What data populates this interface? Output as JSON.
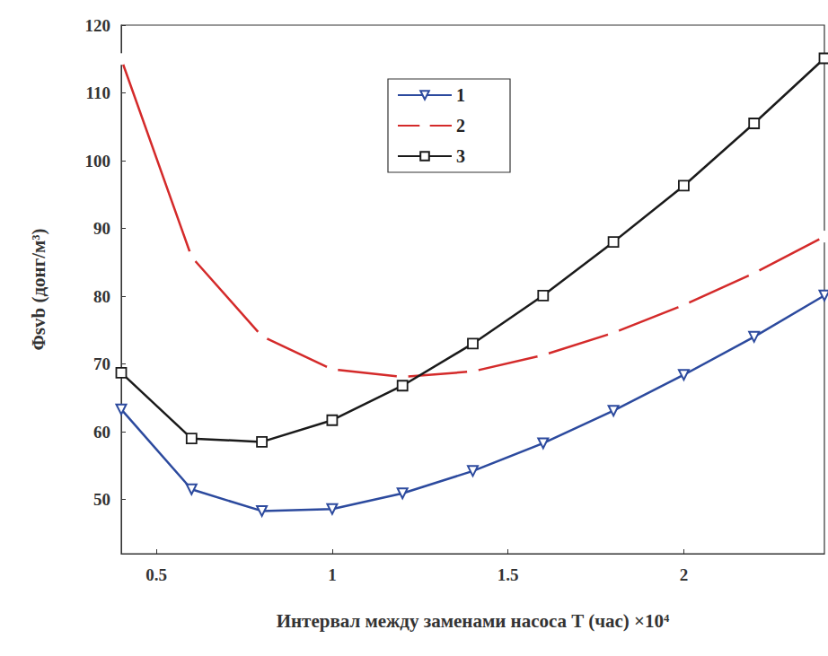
{
  "chart_data": {
    "type": "line",
    "x_label": "Интервал между заменами насоса T (час) ×10⁴",
    "y_label": "Φsvb (донг/м³)",
    "x": [
      0.4,
      0.6,
      0.8,
      1.0,
      1.2,
      1.4,
      1.6,
      1.8,
      2.0,
      2.2,
      2.4
    ],
    "xlim": [
      0.4,
      2.4
    ],
    "xticks": [
      0.5,
      1,
      1.5,
      2
    ],
    "ylim": [
      42,
      120
    ],
    "yticks": [
      50,
      60,
      70,
      80,
      90,
      100,
      110,
      120
    ],
    "grid": false,
    "legend": "upper center",
    "series": [
      {
        "name": "1",
        "color": "#2c4a9e",
        "marker": "triangle_down",
        "line_style": "solid",
        "values": [
          63.3,
          51.5,
          48.3,
          48.6,
          50.9,
          54.2,
          58.3,
          63.1,
          68.4,
          74.0,
          80.1
        ]
      },
      {
        "name": "2",
        "color": "#d42a2a",
        "marker": "circle",
        "line_style": "solid",
        "values": [
          115.0,
          85.8,
          74.1,
          69.2,
          68.1,
          68.9,
          71.3,
          74.6,
          78.7,
          83.4,
          88.8
        ]
      },
      {
        "name": "3",
        "color": "#1a1a1a",
        "marker": "square",
        "line_style": "solid",
        "values": [
          68.7,
          59.0,
          58.5,
          61.7,
          66.8,
          73.0,
          80.1,
          88.0,
          96.3,
          105.5,
          115.1
        ]
      }
    ]
  }
}
